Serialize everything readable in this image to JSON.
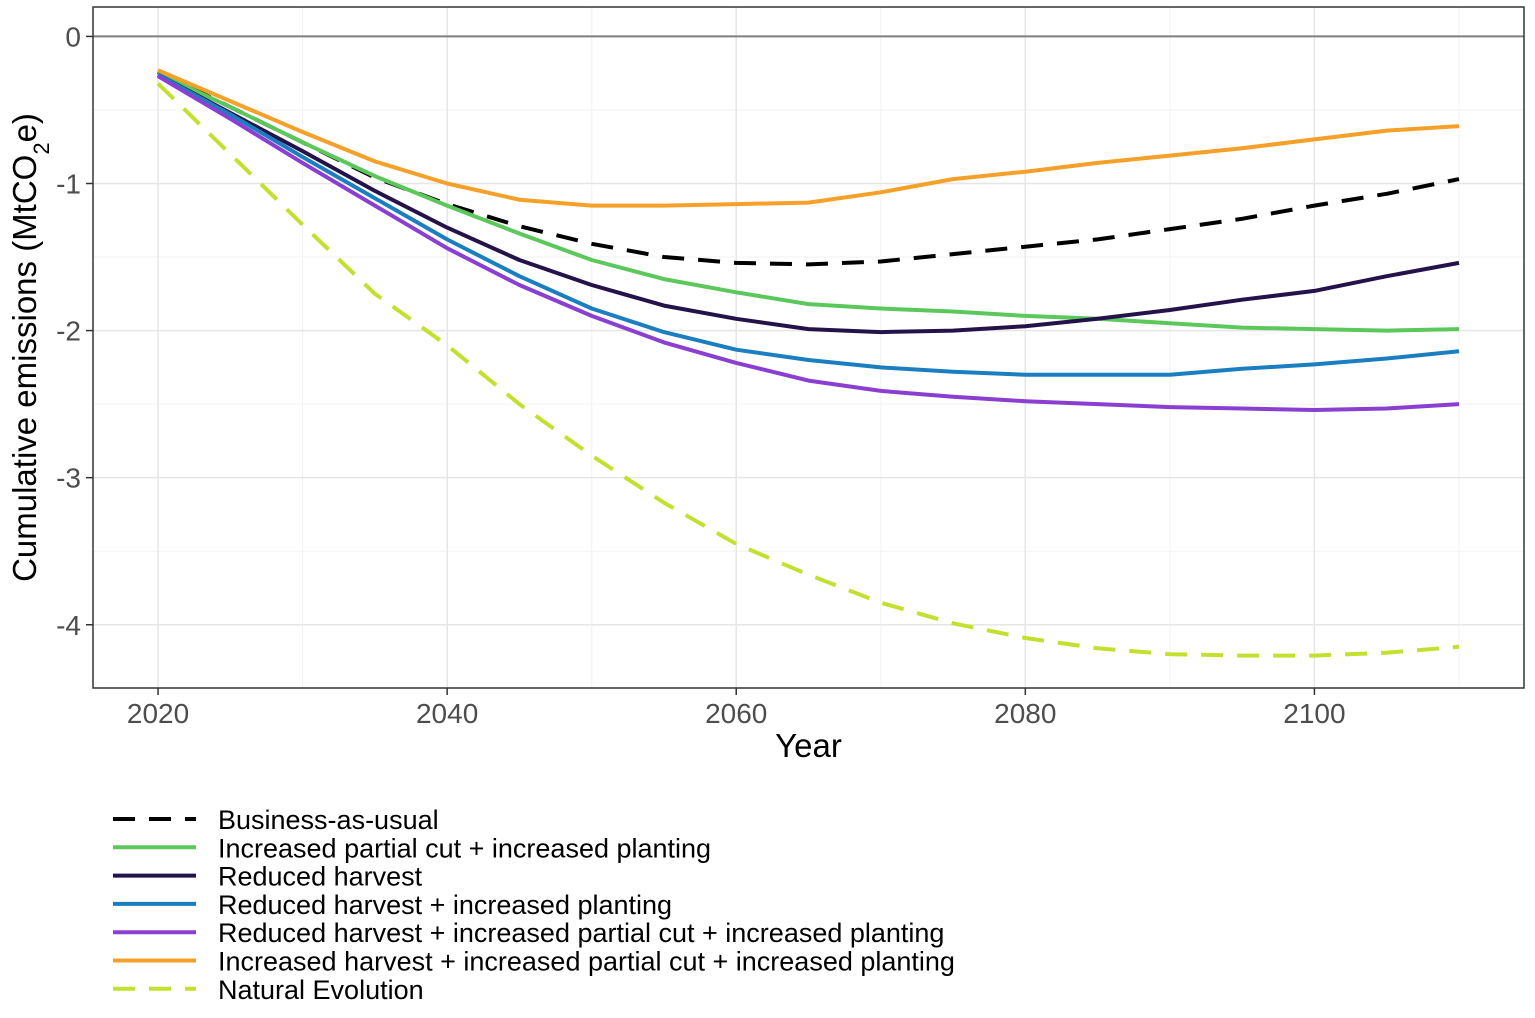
{
  "chart_data": {
    "type": "line",
    "title": "",
    "xlabel": "Year",
    "ylabel": {
      "main": "Cumulative emissions (MtCO",
      "subscript": "2",
      "suffix": "e)"
    },
    "xlim": [
      2015.5,
      2114.5
    ],
    "ylim": [
      -4.43,
      0.2
    ],
    "x_ticks": [
      2020,
      2040,
      2060,
      2080,
      2100
    ],
    "x_tick_labels": [
      "2020",
      "2040",
      "2060",
      "2080",
      "2100"
    ],
    "y_ticks": [
      0,
      -1,
      -2,
      -3,
      -4
    ],
    "y_tick_labels": [
      "0",
      "-1",
      "-2",
      "-3",
      "-4"
    ],
    "grid": true,
    "reference_line_y": 0,
    "legend_position": "bottom",
    "x": [
      2020,
      2025,
      2030,
      2035,
      2040,
      2045,
      2050,
      2055,
      2060,
      2065,
      2070,
      2075,
      2080,
      2085,
      2090,
      2095,
      2100,
      2105,
      2110
    ],
    "series": [
      {
        "name": "Business-as-usual",
        "color": "#000000",
        "dash": true,
        "values": [
          -0.24,
          -0.48,
          -0.72,
          -0.96,
          -1.14,
          -1.29,
          -1.41,
          -1.5,
          -1.54,
          -1.55,
          -1.53,
          -1.48,
          -1.43,
          -1.38,
          -1.31,
          -1.24,
          -1.15,
          -1.07,
          -0.97
        ]
      },
      {
        "name": "Increased partial cut + increased planting",
        "color": "#5cc85c",
        "dash": false,
        "values": [
          -0.25,
          -0.48,
          -0.72,
          -0.95,
          -1.15,
          -1.34,
          -1.52,
          -1.65,
          -1.74,
          -1.82,
          -1.85,
          -1.87,
          -1.9,
          -1.92,
          -1.95,
          -1.98,
          -1.99,
          -2.0,
          -1.99
        ]
      },
      {
        "name": "Reduced harvest",
        "color": "#24134a",
        "dash": false,
        "values": [
          -0.26,
          -0.52,
          -0.78,
          -1.05,
          -1.3,
          -1.52,
          -1.69,
          -1.83,
          -1.92,
          -1.99,
          -2.01,
          -2.0,
          -1.97,
          -1.92,
          -1.86,
          -1.79,
          -1.73,
          -1.63,
          -1.54
        ]
      },
      {
        "name": "Reduced harvest + increased planting",
        "color": "#1a7ec0",
        "dash": false,
        "values": [
          -0.26,
          -0.53,
          -0.82,
          -1.1,
          -1.38,
          -1.63,
          -1.85,
          -2.01,
          -2.13,
          -2.2,
          -2.25,
          -2.28,
          -2.3,
          -2.3,
          -2.3,
          -2.26,
          -2.23,
          -2.19,
          -2.14
        ]
      },
      {
        "name": "Reduced harvest + increased partial cut + increased planting",
        "color": "#8a3fd1",
        "dash": false,
        "values": [
          -0.27,
          -0.56,
          -0.86,
          -1.15,
          -1.44,
          -1.69,
          -1.9,
          -2.08,
          -2.22,
          -2.34,
          -2.41,
          -2.45,
          -2.48,
          -2.5,
          -2.52,
          -2.53,
          -2.54,
          -2.53,
          -2.5
        ]
      },
      {
        "name": "Increased harvest + increased partial cut + increased planting",
        "color": "#f5a028",
        "dash": false,
        "values": [
          -0.23,
          -0.44,
          -0.65,
          -0.85,
          -1.0,
          -1.11,
          -1.15,
          -1.15,
          -1.14,
          -1.13,
          -1.06,
          -0.97,
          -0.92,
          -0.86,
          -0.81,
          -0.76,
          -0.7,
          -0.64,
          -0.61
        ]
      },
      {
        "name": "Natural Evolution",
        "color": "#c2e02e",
        "dash": true,
        "values": [
          -0.32,
          -0.8,
          -1.28,
          -1.75,
          -2.1,
          -2.5,
          -2.85,
          -3.17,
          -3.45,
          -3.66,
          -3.85,
          -3.99,
          -4.09,
          -4.16,
          -4.2,
          -4.21,
          -4.21,
          -4.19,
          -4.15
        ]
      }
    ]
  }
}
